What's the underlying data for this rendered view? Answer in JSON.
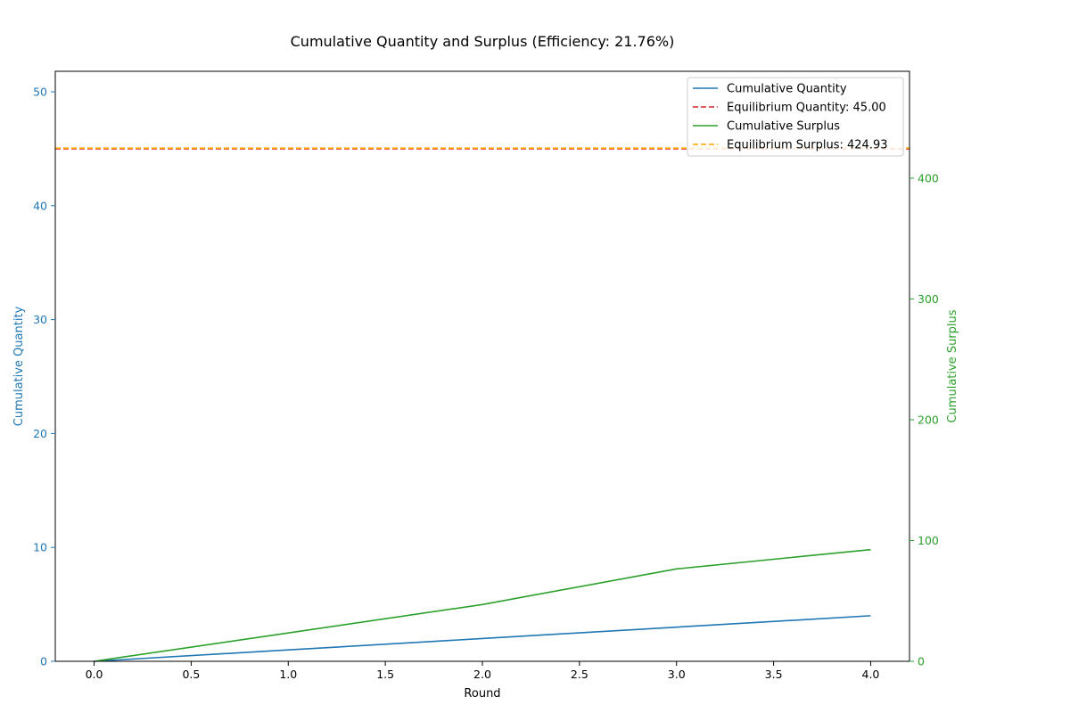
{
  "chart_data": {
    "type": "line",
    "title": "Cumulative Quantity and Surplus (Efficiency: 21.76%)",
    "xlabel": "Round",
    "ylabel_left": "Cumulative Quantity",
    "ylabel_right": "Cumulative Surplus",
    "xlim": [
      -0.2,
      4.2
    ],
    "ylim_left": [
      0,
      51.8
    ],
    "ylim_right": [
      0,
      488.5
    ],
    "xticks": [
      0.0,
      0.5,
      1.0,
      1.5,
      2.0,
      2.5,
      3.0,
      3.5,
      4.0
    ],
    "xtick_labels": [
      "0.0",
      "0.5",
      "1.0",
      "1.5",
      "2.0",
      "2.5",
      "3.0",
      "3.5",
      "4.0"
    ],
    "yticks_left": [
      0,
      10,
      20,
      30,
      40,
      50
    ],
    "ytick_labels_left": [
      "0",
      "10",
      "20",
      "30",
      "40",
      "50"
    ],
    "yticks_right": [
      0,
      100,
      200,
      300,
      400
    ],
    "ytick_labels_right": [
      "0",
      "100",
      "200",
      "300",
      "400"
    ],
    "legend_position": "top-right",
    "series": [
      {
        "name": "Cumulative Quantity",
        "axis": "left",
        "style": "solid",
        "color": "#1f77b4",
        "x": [
          0,
          1,
          2,
          3,
          4
        ],
        "y": [
          0,
          1,
          2,
          3,
          4
        ]
      },
      {
        "name": "Equilibrium Quantity: 45.00",
        "axis": "left",
        "style": "dashed",
        "color": "#d62728",
        "hline": 45.0
      },
      {
        "name": "Cumulative Surplus",
        "axis": "right",
        "style": "solid",
        "color": "#2ca02c",
        "x": [
          0,
          1,
          2,
          3,
          4
        ],
        "y": [
          0,
          23.5,
          47.0,
          76.5,
          92.5
        ]
      },
      {
        "name": "Equilibrium Surplus: 424.93",
        "axis": "right",
        "style": "dashed",
        "color": "#ffa500",
        "hline": 424.93
      }
    ],
    "colors": {
      "left_axis": "#1f77b4",
      "right_axis": "#2ca02c",
      "text": "#000000"
    }
  }
}
